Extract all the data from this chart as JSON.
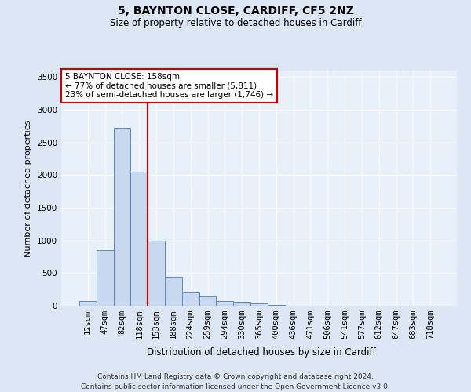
{
  "title1": "5, BAYNTON CLOSE, CARDIFF, CF5 2NZ",
  "title2": "Size of property relative to detached houses in Cardiff",
  "xlabel": "Distribution of detached houses by size in Cardiff",
  "ylabel": "Number of detached properties",
  "footnote1": "Contains HM Land Registry data © Crown copyright and database right 2024.",
  "footnote2": "Contains public sector information licensed under the Open Government Licence v3.0.",
  "annotation_line1": "5 BAYNTON CLOSE: 158sqm",
  "annotation_line2": "← 77% of detached houses are smaller (5,811)",
  "annotation_line3": "23% of semi-detached houses are larger (1,746) →",
  "bar_color": "#c8d9ef",
  "bar_edge_color": "#5b8ac5",
  "vline_color": "#cc0000",
  "vline_x": 3.5,
  "categories": [
    "12sqm",
    "47sqm",
    "82sqm",
    "118sqm",
    "153sqm",
    "188sqm",
    "224sqm",
    "259sqm",
    "294sqm",
    "330sqm",
    "365sqm",
    "400sqm",
    "436sqm",
    "471sqm",
    "506sqm",
    "541sqm",
    "577sqm",
    "612sqm",
    "647sqm",
    "683sqm",
    "718sqm"
  ],
  "values": [
    75,
    850,
    2720,
    2050,
    1000,
    450,
    210,
    140,
    75,
    60,
    35,
    10,
    5,
    5,
    5,
    2,
    2,
    2,
    1,
    1,
    1
  ],
  "ylim": [
    0,
    3600
  ],
  "yticks": [
    0,
    500,
    1000,
    1500,
    2000,
    2500,
    3000,
    3500
  ],
  "background_color": "#dce6f5",
  "plot_bg_color": "#e8f0fa",
  "grid_color": "#ffffff",
  "title1_fontsize": 10,
  "title2_fontsize": 8.5,
  "ylabel_fontsize": 8,
  "xlabel_fontsize": 8.5,
  "tick_fontsize": 7.5,
  "annot_fontsize": 7.5,
  "footnote_fontsize": 6.5
}
